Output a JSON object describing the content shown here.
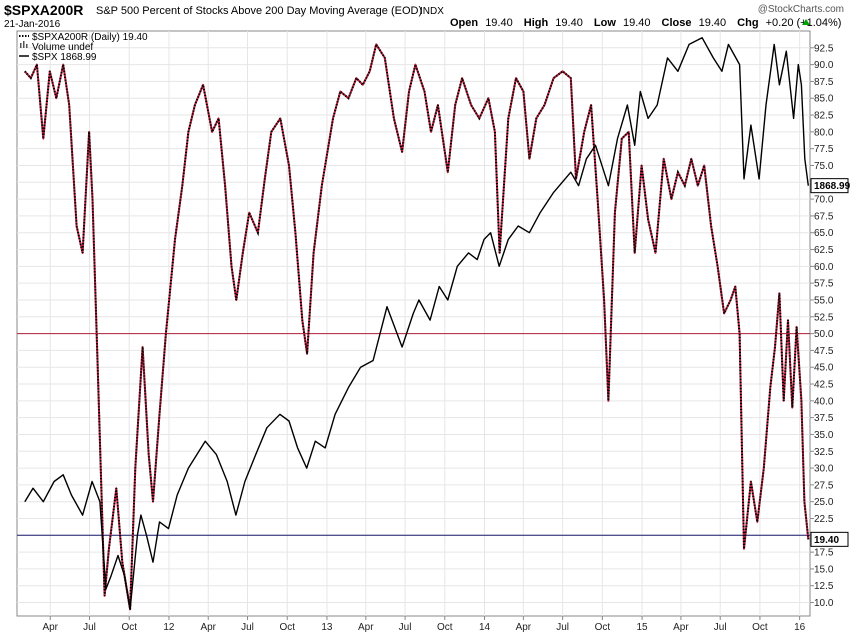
{
  "header": {
    "symbol": "$SPXA200R",
    "description": "S&P 500 Percent of Stocks Above 200 Day Moving Average (EOD)",
    "exchange": "INDX",
    "date": "21-Jan-2016",
    "watermark": "@StockCharts.com",
    "open_label": "Open",
    "open_value": "19.40",
    "high_label": "High",
    "high_value": "19.40",
    "low_label": "Low",
    "low_value": "19.40",
    "close_label": "Close",
    "close_value": "19.40",
    "chg_label": "Chg",
    "chg_value": "+0.20 (+1.04%)",
    "chg_color": "#00a000"
  },
  "legend": [
    {
      "text": "$SPXA200R (Daily) 19.40",
      "symbol": "dotted-line"
    },
    {
      "text": "Volume undef",
      "symbol": "volume-bars"
    },
    {
      "text": "$SPX 1868.99",
      "symbol": "solid-line"
    }
  ],
  "price_badges": {
    "spx": "1868.99",
    "spxa200r": "19.40"
  },
  "colors": {
    "spxa200r": "#b0203a",
    "spx": "#000000",
    "ref_line_50": "#b0203a",
    "ref_line_20": "#1a1a6e",
    "grid": "#e6e6e6",
    "axis": "#888888"
  },
  "chart_data": {
    "type": "line",
    "x_tick_labels": [
      "Apr",
      "Jul",
      "Oct",
      "12",
      "Apr",
      "Jul",
      "Oct",
      "13",
      "Apr",
      "Jul",
      "Oct",
      "14",
      "Apr",
      "Jul",
      "Oct",
      "15",
      "Apr",
      "Jul",
      "Oct",
      "16"
    ],
    "y_tick_labels": [
      "10.0",
      "12.5",
      "15.0",
      "17.5",
      "20.0",
      "22.5",
      "25.0",
      "27.5",
      "30.0",
      "32.5",
      "35.0",
      "37.5",
      "40.0",
      "42.5",
      "45.0",
      "47.5",
      "50.0",
      "52.5",
      "55.0",
      "57.5",
      "60.0",
      "62.5",
      "65.0",
      "67.5",
      "70.0",
      "72.5",
      "75.0",
      "77.5",
      "80.0",
      "82.5",
      "85.0",
      "87.5",
      "90.0",
      "92.5"
    ],
    "ylim": [
      8,
      95
    ],
    "reference_lines": [
      50,
      20
    ],
    "series": [
      {
        "name": "$SPXA200R (Daily) 19.40",
        "style": "dotted",
        "points": [
          [
            "2011-02-01",
            89
          ],
          [
            "2011-02-15",
            88
          ],
          [
            "2011-03-01",
            90
          ],
          [
            "2011-03-16",
            79
          ],
          [
            "2011-03-31",
            89
          ],
          [
            "2011-04-15",
            85
          ],
          [
            "2011-05-01",
            90
          ],
          [
            "2011-05-15",
            84
          ],
          [
            "2011-06-01",
            66
          ],
          [
            "2011-06-15",
            62
          ],
          [
            "2011-06-30",
            80
          ],
          [
            "2011-07-08",
            70
          ],
          [
            "2011-07-20",
            45
          ],
          [
            "2011-08-05",
            11
          ],
          [
            "2011-08-15",
            18
          ],
          [
            "2011-09-01",
            27
          ],
          [
            "2011-09-15",
            16
          ],
          [
            "2011-10-03",
            9
          ],
          [
            "2011-10-15",
            30
          ],
          [
            "2011-11-01",
            48
          ],
          [
            "2011-11-15",
            32
          ],
          [
            "2011-11-25",
            25
          ],
          [
            "2011-12-10",
            38
          ],
          [
            "2011-12-25",
            50
          ],
          [
            "2012-01-15",
            64
          ],
          [
            "2012-02-01",
            72
          ],
          [
            "2012-02-15",
            80
          ],
          [
            "2012-03-01",
            84
          ],
          [
            "2012-03-20",
            87
          ],
          [
            "2012-04-10",
            80
          ],
          [
            "2012-04-25",
            82
          ],
          [
            "2012-05-10",
            72
          ],
          [
            "2012-05-25",
            60
          ],
          [
            "2012-06-05",
            55
          ],
          [
            "2012-06-20",
            62
          ],
          [
            "2012-07-05",
            68
          ],
          [
            "2012-07-25",
            65
          ],
          [
            "2012-08-10",
            73
          ],
          [
            "2012-08-25",
            80
          ],
          [
            "2012-09-15",
            82
          ],
          [
            "2012-10-05",
            75
          ],
          [
            "2012-10-20",
            65
          ],
          [
            "2012-11-05",
            52
          ],
          [
            "2012-11-16",
            47
          ],
          [
            "2012-12-01",
            62
          ],
          [
            "2012-12-20",
            72
          ],
          [
            "2013-01-15",
            82
          ],
          [
            "2013-02-01",
            86
          ],
          [
            "2013-02-20",
            85
          ],
          [
            "2013-03-10",
            88
          ],
          [
            "2013-03-25",
            87
          ],
          [
            "2013-04-10",
            89
          ],
          [
            "2013-04-25",
            93
          ],
          [
            "2013-05-15",
            91
          ],
          [
            "2013-06-05",
            82
          ],
          [
            "2013-06-24",
            77
          ],
          [
            "2013-07-10",
            86
          ],
          [
            "2013-07-25",
            90
          ],
          [
            "2013-08-15",
            86
          ],
          [
            "2013-08-30",
            80
          ],
          [
            "2013-09-15",
            84
          ],
          [
            "2013-10-08",
            74
          ],
          [
            "2013-10-25",
            84
          ],
          [
            "2013-11-10",
            88
          ],
          [
            "2013-12-01",
            84
          ],
          [
            "2013-12-20",
            82
          ],
          [
            "2014-01-10",
            85
          ],
          [
            "2014-01-25",
            80
          ],
          [
            "2014-02-05",
            62
          ],
          [
            "2014-02-25",
            82
          ],
          [
            "2014-03-15",
            88
          ],
          [
            "2014-04-01",
            86
          ],
          [
            "2014-04-15",
            76
          ],
          [
            "2014-05-01",
            82
          ],
          [
            "2014-05-20",
            84
          ],
          [
            "2014-06-10",
            88
          ],
          [
            "2014-07-01",
            89
          ],
          [
            "2014-07-20",
            88
          ],
          [
            "2014-08-01",
            73
          ],
          [
            "2014-08-20",
            80
          ],
          [
            "2014-09-05",
            84
          ],
          [
            "2014-09-20",
            70
          ],
          [
            "2014-10-05",
            55
          ],
          [
            "2014-10-15",
            40
          ],
          [
            "2014-10-30",
            68
          ],
          [
            "2014-11-15",
            79
          ],
          [
            "2014-12-01",
            80
          ],
          [
            "2014-12-15",
            62
          ],
          [
            "2014-12-31",
            75
          ],
          [
            "2015-01-15",
            67
          ],
          [
            "2015-02-01",
            62
          ],
          [
            "2015-02-20",
            76
          ],
          [
            "2015-03-10",
            70
          ],
          [
            "2015-03-25",
            74
          ],
          [
            "2015-04-10",
            72
          ],
          [
            "2015-04-25",
            76
          ],
          [
            "2015-05-10",
            72
          ],
          [
            "2015-05-25",
            75
          ],
          [
            "2015-06-10",
            66
          ],
          [
            "2015-06-25",
            60
          ],
          [
            "2015-07-10",
            53
          ],
          [
            "2015-07-25",
            55
          ],
          [
            "2015-08-05",
            57
          ],
          [
            "2015-08-15",
            50
          ],
          [
            "2015-08-25",
            18
          ],
          [
            "2015-09-10",
            28
          ],
          [
            "2015-09-25",
            22
          ],
          [
            "2015-10-10",
            30
          ],
          [
            "2015-10-25",
            42
          ],
          [
            "2015-11-05",
            48
          ],
          [
            "2015-11-15",
            56
          ],
          [
            "2015-11-25",
            40
          ],
          [
            "2015-12-05",
            52
          ],
          [
            "2015-12-15",
            39
          ],
          [
            "2015-12-25",
            51
          ],
          [
            "2016-01-05",
            40
          ],
          [
            "2016-01-12",
            25
          ],
          [
            "2016-01-21",
            19.4
          ]
        ]
      },
      {
        "name": "$SPX 1868.99",
        "style": "solid",
        "points": [
          [
            "2011-02-01",
            25
          ],
          [
            "2011-02-20",
            27
          ],
          [
            "2011-03-16",
            25
          ],
          [
            "2011-04-10",
            28
          ],
          [
            "2011-05-01",
            29
          ],
          [
            "2011-05-20",
            26
          ],
          [
            "2011-06-15",
            23
          ],
          [
            "2011-07-07",
            28
          ],
          [
            "2011-07-25",
            25
          ],
          [
            "2011-08-08",
            12
          ],
          [
            "2011-08-20",
            14
          ],
          [
            "2011-09-05",
            17
          ],
          [
            "2011-09-20",
            14
          ],
          [
            "2011-10-03",
            9
          ],
          [
            "2011-10-20",
            20
          ],
          [
            "2011-10-28",
            23
          ],
          [
            "2011-11-10",
            20
          ],
          [
            "2011-11-25",
            16
          ],
          [
            "2011-12-10",
            22
          ],
          [
            "2011-12-31",
            21
          ],
          [
            "2012-01-20",
            26
          ],
          [
            "2012-02-15",
            30
          ],
          [
            "2012-03-25",
            34
          ],
          [
            "2012-04-20",
            32
          ],
          [
            "2012-05-15",
            28
          ],
          [
            "2012-06-04",
            23
          ],
          [
            "2012-06-25",
            28
          ],
          [
            "2012-07-20",
            32
          ],
          [
            "2012-08-15",
            36
          ],
          [
            "2012-09-14",
            38
          ],
          [
            "2012-10-05",
            37
          ],
          [
            "2012-10-25",
            33
          ],
          [
            "2012-11-15",
            30
          ],
          [
            "2012-12-05",
            34
          ],
          [
            "2012-12-28",
            33
          ],
          [
            "2013-01-20",
            38
          ],
          [
            "2013-02-20",
            42
          ],
          [
            "2013-03-20",
            45
          ],
          [
            "2013-04-18",
            46
          ],
          [
            "2013-05-20",
            54
          ],
          [
            "2013-06-24",
            48
          ],
          [
            "2013-07-20",
            53
          ],
          [
            "2013-08-02",
            55
          ],
          [
            "2013-08-28",
            52
          ],
          [
            "2013-09-18",
            57
          ],
          [
            "2013-10-08",
            55
          ],
          [
            "2013-10-30",
            60
          ],
          [
            "2013-11-25",
            62
          ],
          [
            "2013-12-15",
            61
          ],
          [
            "2013-12-31",
            64
          ],
          [
            "2014-01-15",
            65
          ],
          [
            "2014-02-04",
            60
          ],
          [
            "2014-02-25",
            64
          ],
          [
            "2014-03-20",
            66
          ],
          [
            "2014-04-15",
            65
          ],
          [
            "2014-05-10",
            68
          ],
          [
            "2014-06-10",
            71
          ],
          [
            "2014-07-20",
            74
          ],
          [
            "2014-08-07",
            72
          ],
          [
            "2014-08-25",
            76
          ],
          [
            "2014-09-15",
            78
          ],
          [
            "2014-10-15",
            72
          ],
          [
            "2014-11-05",
            79
          ],
          [
            "2014-11-28",
            84
          ],
          [
            "2014-12-15",
            78
          ],
          [
            "2014-12-28",
            86
          ],
          [
            "2015-01-15",
            82
          ],
          [
            "2015-02-05",
            84
          ],
          [
            "2015-03-01",
            91
          ],
          [
            "2015-03-25",
            89
          ],
          [
            "2015-04-20",
            93
          ],
          [
            "2015-05-20",
            94
          ],
          [
            "2015-06-15",
            91
          ],
          [
            "2015-07-05",
            89
          ],
          [
            "2015-07-20",
            93
          ],
          [
            "2015-08-15",
            90
          ],
          [
            "2015-08-25",
            73
          ],
          [
            "2015-09-10",
            81
          ],
          [
            "2015-09-29",
            73
          ],
          [
            "2015-10-15",
            84
          ],
          [
            "2015-11-03",
            93
          ],
          [
            "2015-11-15",
            87
          ],
          [
            "2015-12-01",
            92
          ],
          [
            "2015-12-18",
            82
          ],
          [
            "2015-12-29",
            90
          ],
          [
            "2016-01-05",
            87
          ],
          [
            "2016-01-13",
            76
          ],
          [
            "2016-01-21",
            72
          ]
        ]
      }
    ]
  }
}
